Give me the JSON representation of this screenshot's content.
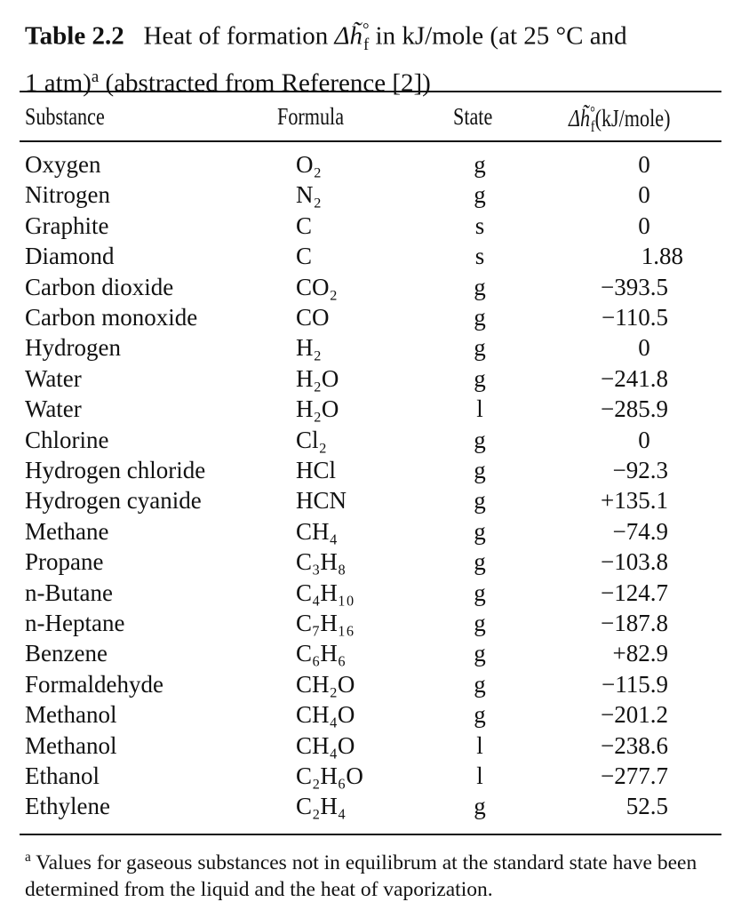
{
  "caption": {
    "label": "Table 2.2",
    "text_1": "Heat of formation",
    "symbol": "Δh̃",
    "symbol_sup": "°",
    "symbol_sub": "f",
    "text_2": "in kJ/mole (at 25 °C and",
    "text_3": "1 atm)",
    "footnote_mark": "a",
    "text_4": "(abstracted from Reference [2])"
  },
  "table": {
    "header": {
      "substance": "Substance",
      "formula": "Formula",
      "state": "State",
      "symbol": "Δh̃",
      "symbol_sup": "°",
      "symbol_sub": "f",
      "unit": "(kJ/mole)"
    },
    "rows": [
      [
        "Oxygen",
        "O₂",
        "g",
        "0"
      ],
      [
        "Nitrogen",
        "N₂",
        "g",
        "0"
      ],
      [
        "Graphite",
        "C",
        "s",
        "0"
      ],
      [
        "Diamond",
        "C",
        "s",
        "1.88"
      ],
      [
        "Carbon dioxide",
        "CO₂",
        "g",
        "−393.5"
      ],
      [
        "Carbon monoxide",
        "CO",
        "g",
        "−110.5"
      ],
      [
        "Hydrogen",
        "H₂",
        "g",
        "0"
      ],
      [
        "Water",
        "H₂O",
        "g",
        "−241.8"
      ],
      [
        "Water",
        "H₂O",
        "l",
        "−285.9"
      ],
      [
        "Chlorine",
        "Cl₂",
        "g",
        "0"
      ],
      [
        "Hydrogen chloride",
        "HCl",
        "g",
        "−92.3"
      ],
      [
        "Hydrogen cyanide",
        "HCN",
        "g",
        "+135.1"
      ],
      [
        "Methane",
        "CH₄",
        "g",
        "−74.9"
      ],
      [
        "Propane",
        "C₃H₈",
        "g",
        "−103.8"
      ],
      [
        "n-Butane",
        "C₄H₁₀",
        "g",
        "−124.7"
      ],
      [
        "n-Heptane",
        "C₇H₁₆",
        "g",
        "−187.8"
      ],
      [
        "Benzene",
        "C₆H₆",
        "g",
        "+82.9"
      ],
      [
        "Formaldehyde",
        "CH₂O",
        "g",
        "−115.9"
      ],
      [
        "Methanol",
        "CH₄O",
        "g",
        "−201.2"
      ],
      [
        "Methanol",
        "CH₄O",
        "l",
        "−238.6"
      ],
      [
        "Ethanol",
        "C₂H₆O",
        "l",
        "−277.7"
      ],
      [
        "Ethylene",
        "C₂H₄",
        "g",
        "52.5"
      ]
    ]
  },
  "footnote": {
    "mark": "a",
    "text": "Values for gaseous substances not in equilibrum at the standard state have been determined from the liquid and the heat of vaporization."
  }
}
